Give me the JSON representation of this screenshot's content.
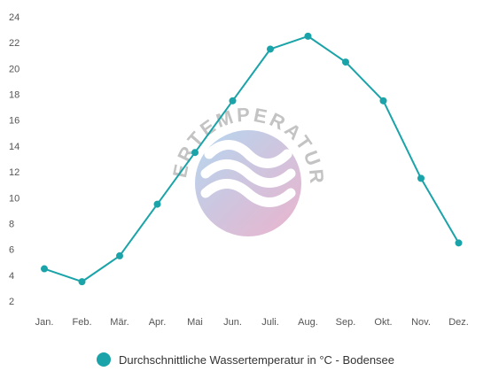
{
  "chart_data": {
    "type": "line",
    "categories": [
      "Jan.",
      "Feb.",
      "Mär.",
      "Apr.",
      "Mai",
      "Jun.",
      "Juli.",
      "Aug.",
      "Sep.",
      "Okt.",
      "Nov.",
      "Dez."
    ],
    "series": [
      {
        "name": "Durchschnittliche Wassertemperatur in °C - Bodensee",
        "values": [
          4.5,
          3.5,
          5.5,
          9.5,
          13.5,
          17.5,
          21.5,
          22.5,
          20.5,
          17.5,
          11.5,
          6.5
        ]
      }
    ],
    "yticks": [
      "2",
      "4",
      "6",
      "8",
      "10",
      "12",
      "14",
      "16",
      "18",
      "20",
      "22",
      "24"
    ],
    "ylim": [
      2,
      24
    ],
    "grid": false,
    "legend_position": "bottom",
    "title": "",
    "xlabel": "",
    "ylabel": "",
    "colors": {
      "series": "#1aa3a8",
      "tick_text": "#555555"
    }
  },
  "watermark": {
    "text": "WASSERTEMPERATUR.ORG",
    "icon": "waves-logo-icon"
  }
}
